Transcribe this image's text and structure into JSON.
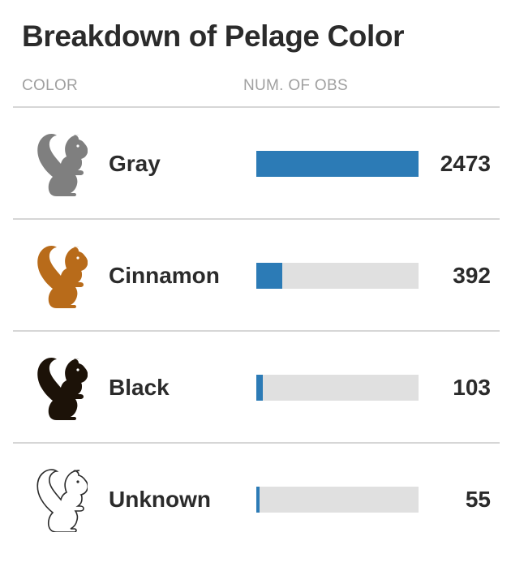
{
  "title": "Breakdown of Pelage Color",
  "columns": {
    "color": "COLOR",
    "count": "NUM. OF OBS"
  },
  "colors": {
    "bar": "#2c7bb6",
    "track": "#e0e0e0"
  },
  "chart_data": {
    "type": "bar",
    "orientation": "horizontal",
    "title": "Breakdown of Pelage Color",
    "xlabel": "NUM. OF OBS",
    "ylabel": "COLOR",
    "categories": [
      "Gray",
      "Cinnamon",
      "Black",
      "Unknown"
    ],
    "values": [
      2473,
      392,
      103,
      55
    ],
    "xlim": [
      0,
      2473
    ],
    "grid": false,
    "legend": "none"
  },
  "rows": [
    {
      "label": "Gray",
      "count": "2473",
      "icon": "gray-squirrel-icon",
      "icon_color": "#7f7f7f"
    },
    {
      "label": "Cinnamon",
      "count": "392",
      "icon": "cinnamon-squirrel-icon",
      "icon_color": "#b86b1a"
    },
    {
      "label": "Black",
      "count": "103",
      "icon": "black-squirrel-icon",
      "icon_color": "#1c1208"
    },
    {
      "label": "Unknown",
      "count": "55",
      "icon": "unknown-squirrel-icon",
      "icon_color": "outline"
    }
  ]
}
